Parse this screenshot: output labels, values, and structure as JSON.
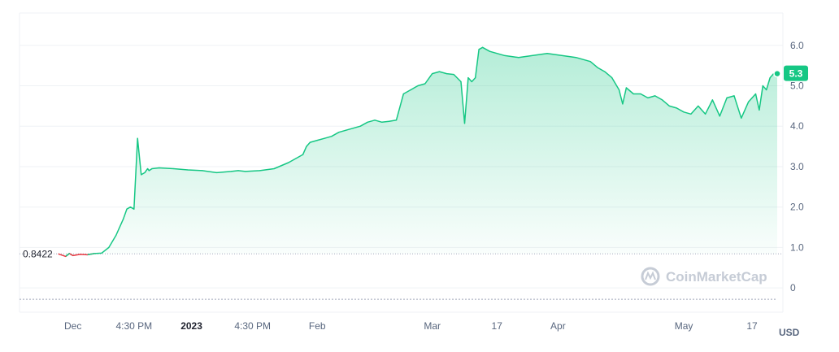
{
  "chart_data": {
    "type": "area",
    "currency_label": "USD",
    "current_price_label": "5.3",
    "baseline_label": "0.8422",
    "baseline_value": 0.8422,
    "watermark": "CoinMarketCap",
    "ylim": [
      -0.6,
      6.8
    ],
    "y_ticks": [
      {
        "label": "6.0",
        "value": 6.0
      },
      {
        "label": "5.0",
        "value": 5.0
      },
      {
        "label": "4.0",
        "value": 4.0
      },
      {
        "label": "3.0",
        "value": 3.0
      },
      {
        "label": "2.0",
        "value": 2.0
      },
      {
        "label": "1.0",
        "value": 1.0
      },
      {
        "label": "0",
        "value": 0
      }
    ],
    "x_ticks": [
      {
        "label": "Dec",
        "bold": false,
        "t": 0.02
      },
      {
        "label": "4:30 PM",
        "bold": false,
        "t": 0.105
      },
      {
        "label": "2023",
        "bold": true,
        "t": 0.185
      },
      {
        "label": "4:30 PM",
        "bold": false,
        "t": 0.27
      },
      {
        "label": "Feb",
        "bold": false,
        "t": 0.36
      },
      {
        "label": "Mar",
        "bold": false,
        "t": 0.52
      },
      {
        "label": "17",
        "bold": false,
        "t": 0.61
      },
      {
        "label": "Apr",
        "bold": false,
        "t": 0.695
      },
      {
        "label": "May",
        "bold": false,
        "t": 0.87
      },
      {
        "label": "17",
        "bold": false,
        "t": 0.965
      }
    ],
    "series": [
      {
        "x": [
          0,
          0.01,
          0.015,
          0.02,
          0.03,
          0.04,
          0.05,
          0.06,
          0.07,
          0.08,
          0.09,
          0.095,
          0.1,
          0.105,
          0.11,
          0.115,
          0.12,
          0.122,
          0.124,
          0.126,
          0.13,
          0.14,
          0.16,
          0.18,
          0.2,
          0.22,
          0.24,
          0.25,
          0.26,
          0.28,
          0.3,
          0.32,
          0.34,
          0.345,
          0.35,
          0.36,
          0.37,
          0.38,
          0.39,
          0.4,
          0.41,
          0.42,
          0.43,
          0.44,
          0.45,
          0.46,
          0.47,
          0.48,
          0.49,
          0.5,
          0.51,
          0.52,
          0.53,
          0.54,
          0.55,
          0.56,
          0.565,
          0.57,
          0.575,
          0.58,
          0.585,
          0.59,
          0.6,
          0.62,
          0.64,
          0.66,
          0.68,
          0.7,
          0.72,
          0.74,
          0.75,
          0.76,
          0.77,
          0.78,
          0.785,
          0.79,
          0.8,
          0.81,
          0.82,
          0.83,
          0.84,
          0.85,
          0.86,
          0.87,
          0.88,
          0.89,
          0.9,
          0.91,
          0.92,
          0.93,
          0.94,
          0.95,
          0.96,
          0.97,
          0.975,
          0.98,
          0.985,
          0.99,
          0.995,
          1.0
        ],
        "y": [
          0.84,
          0.78,
          0.85,
          0.8,
          0.83,
          0.82,
          0.85,
          0.86,
          1.0,
          1.3,
          1.7,
          1.95,
          2.0,
          1.95,
          3.7,
          2.8,
          2.85,
          2.9,
          2.95,
          2.9,
          2.95,
          2.97,
          2.95,
          2.92,
          2.9,
          2.85,
          2.88,
          2.9,
          2.88,
          2.9,
          2.95,
          3.1,
          3.3,
          3.5,
          3.6,
          3.65,
          3.7,
          3.75,
          3.85,
          3.9,
          3.95,
          4.0,
          4.1,
          4.15,
          4.1,
          4.12,
          4.15,
          4.8,
          4.9,
          5.0,
          5.05,
          5.3,
          5.35,
          5.3,
          5.28,
          5.1,
          4.07,
          5.2,
          5.1,
          5.2,
          5.9,
          5.95,
          5.85,
          5.75,
          5.7,
          5.75,
          5.8,
          5.75,
          5.7,
          5.6,
          5.45,
          5.35,
          5.2,
          4.9,
          4.55,
          4.95,
          4.8,
          4.8,
          4.7,
          4.75,
          4.65,
          4.5,
          4.45,
          4.35,
          4.3,
          4.5,
          4.3,
          4.65,
          4.25,
          4.7,
          4.75,
          4.2,
          4.6,
          4.8,
          4.4,
          5.0,
          4.9,
          5.2,
          5.3,
          5.3
        ]
      }
    ]
  }
}
